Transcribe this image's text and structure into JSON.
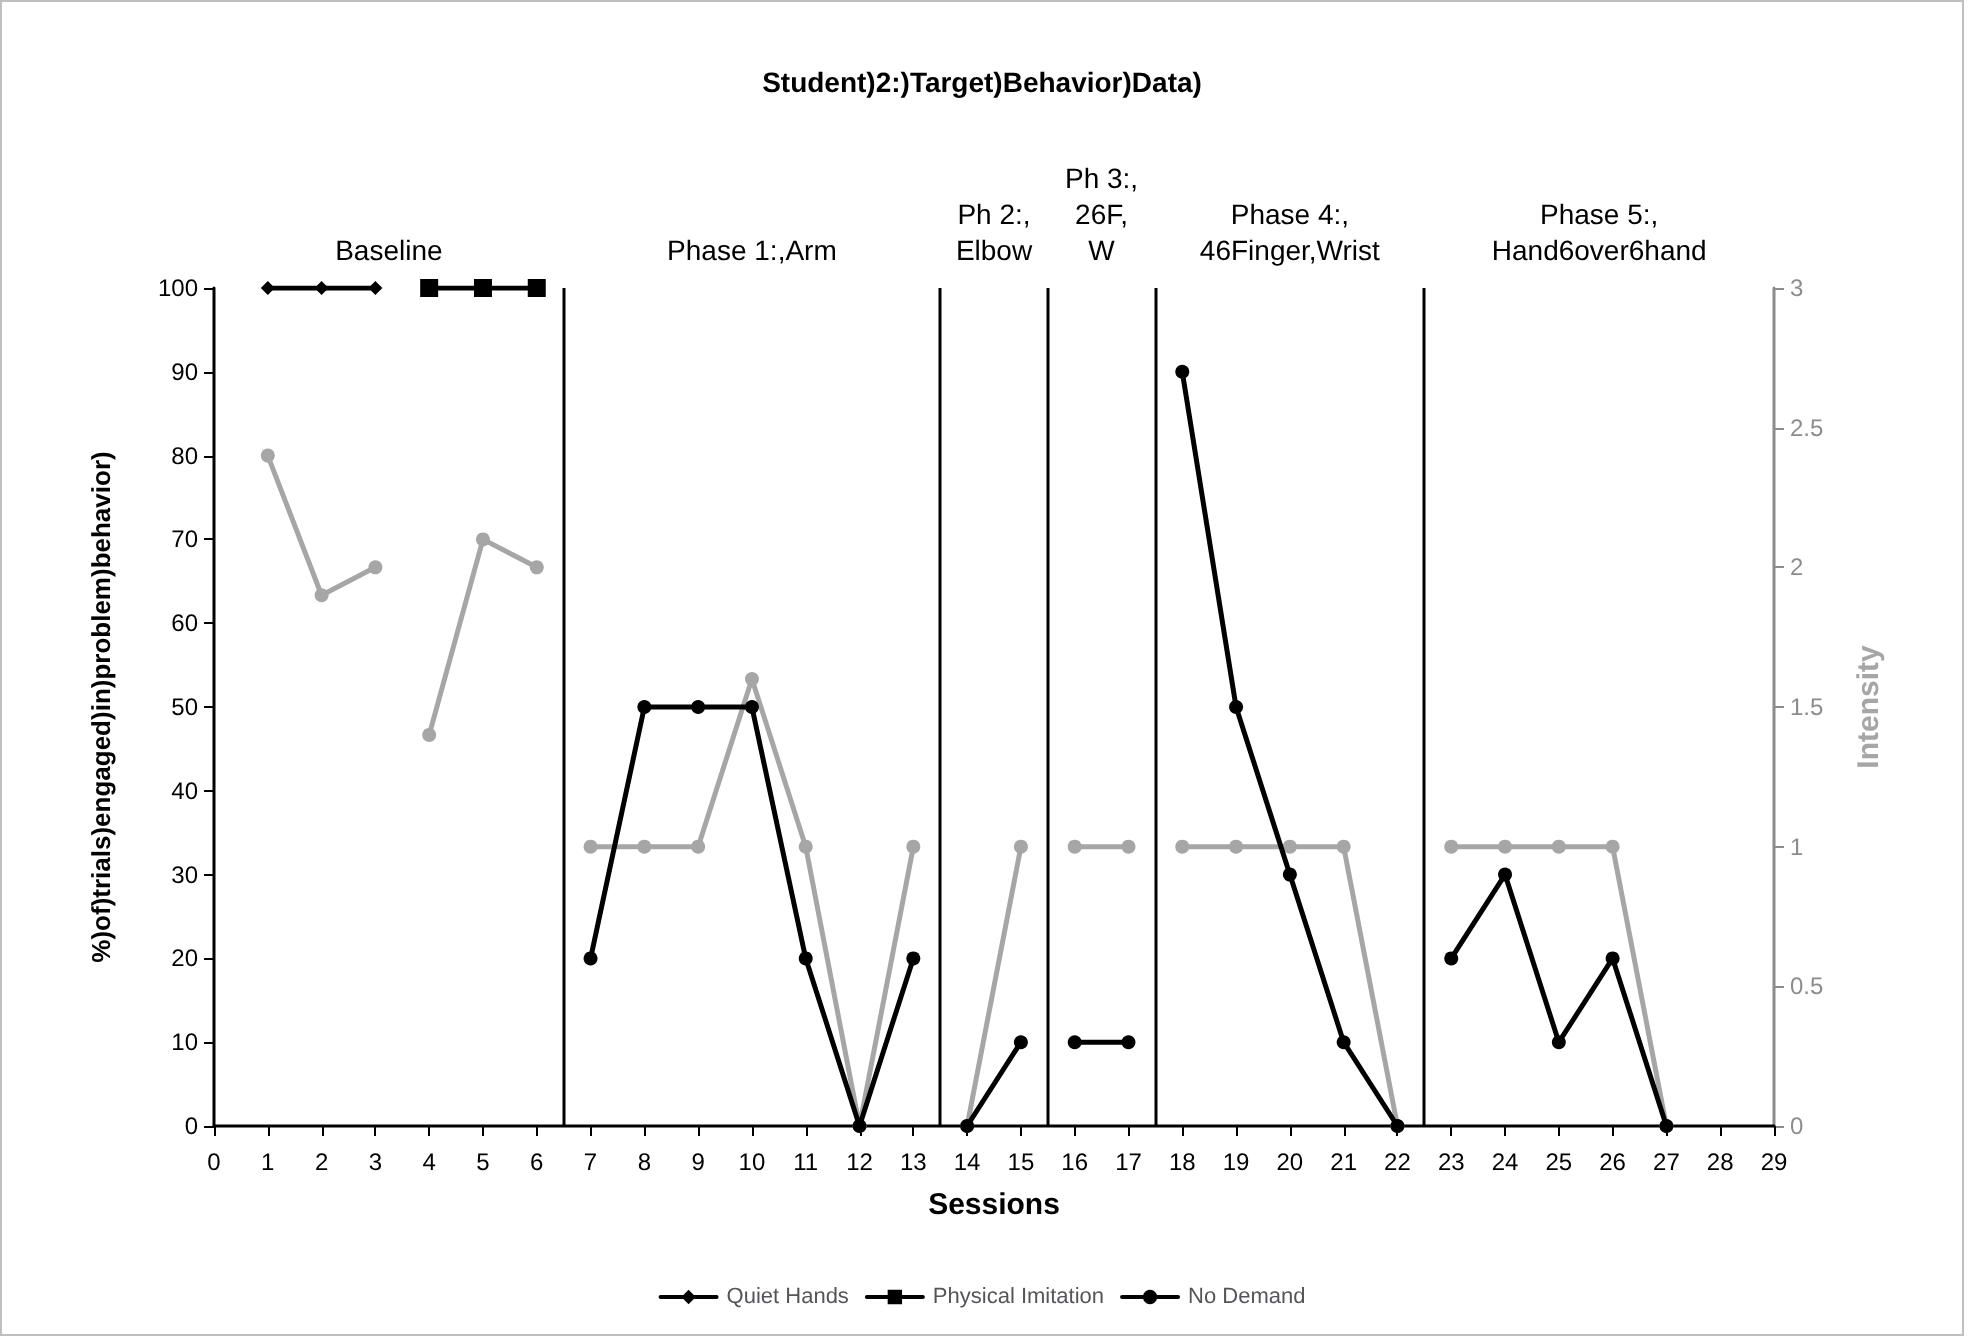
{
  "chart_data": {
    "type": "line",
    "title": "Student)2:)Target)Behavior)Data)",
    "xlabel": "Sessions",
    "ylabel": "%)of)trials)engaged)in)problem)behavior)",
    "y2label": "Intensity",
    "xlim": [
      0,
      29
    ],
    "xticks": [
      0,
      1,
      2,
      3,
      4,
      5,
      6,
      7,
      8,
      9,
      10,
      11,
      12,
      13,
      14,
      15,
      16,
      17,
      18,
      19,
      20,
      21,
      22,
      23,
      24,
      25,
      26,
      27,
      28,
      29
    ],
    "ylim": [
      0,
      100
    ],
    "yticks": [
      0,
      10,
      20,
      30,
      40,
      50,
      60,
      70,
      80,
      90,
      100
    ],
    "y2lim": [
      0,
      3
    ],
    "y2ticks": [
      0,
      0.5,
      1,
      1.5,
      2,
      2.5,
      3
    ],
    "grid": false,
    "legend": "bottom",
    "line_style": "solid",
    "series": [
      {
        "name": "Quiet Hands",
        "color": "#000000",
        "marker": "diamond",
        "x": [
          1,
          2,
          3
        ],
        "values": [
          100,
          100,
          100
        ]
      },
      {
        "name": "Physical Imitation",
        "color": "#000000",
        "marker": "square",
        "x": [
          4,
          5,
          6
        ],
        "values": [
          100,
          100,
          100
        ]
      },
      {
        "name": "No Demand",
        "color": "#000000",
        "marker": "circle",
        "x": [
          7,
          8,
          9,
          10,
          11,
          12,
          13,
          13.5,
          14,
          15,
          15.5,
          16,
          17,
          17.5,
          18,
          19,
          20,
          21,
          22,
          22.5,
          23,
          24,
          25,
          26,
          27
        ],
        "values": [
          20,
          50,
          50,
          50,
          20,
          0,
          20,
          null,
          0,
          10,
          null,
          10,
          10,
          null,
          90,
          50,
          30,
          10,
          0,
          null,
          20,
          30,
          10,
          20,
          0
        ]
      },
      {
        "color": "#a6a6a6",
        "marker": "circle",
        "axis": "y2",
        "x": [
          1,
          2,
          3,
          3.5,
          4,
          5,
          6,
          6.5,
          7,
          8,
          9,
          10,
          11,
          12,
          13,
          13.5,
          14,
          15,
          15.5,
          16,
          17,
          17.5,
          18,
          19,
          20,
          21,
          22,
          22.5,
          23,
          24,
          25,
          26,
          27
        ],
        "values": [
          2.4,
          1.9,
          2.0,
          null,
          1.4,
          2.1,
          2.0,
          null,
          1,
          1,
          1,
          1.6,
          1,
          0,
          1,
          null,
          0,
          1,
          null,
          1,
          1,
          null,
          1,
          1,
          1,
          1,
          0,
          null,
          1,
          1,
          1,
          1,
          0
        ]
      }
    ],
    "ref_lines": [
      {
        "axis": "x",
        "value": 6.5,
        "color": "#000000"
      },
      {
        "axis": "x",
        "value": 13.5,
        "color": "#000000"
      },
      {
        "axis": "x",
        "value": 15.5,
        "color": "#000000"
      },
      {
        "axis": "x",
        "value": 17.5,
        "color": "#000000"
      },
      {
        "axis": "x",
        "value": 22.5,
        "color": "#000000"
      }
    ],
    "annotations": [
      "Baseline",
      "Phase 1:,Arm",
      "Ph 2:,\nElbow",
      "Ph 3:,\n26F,\nW",
      "Phase 4:,\n46Finger,Wrist",
      "Phase 5:,\nHand6over6hand"
    ]
  }
}
